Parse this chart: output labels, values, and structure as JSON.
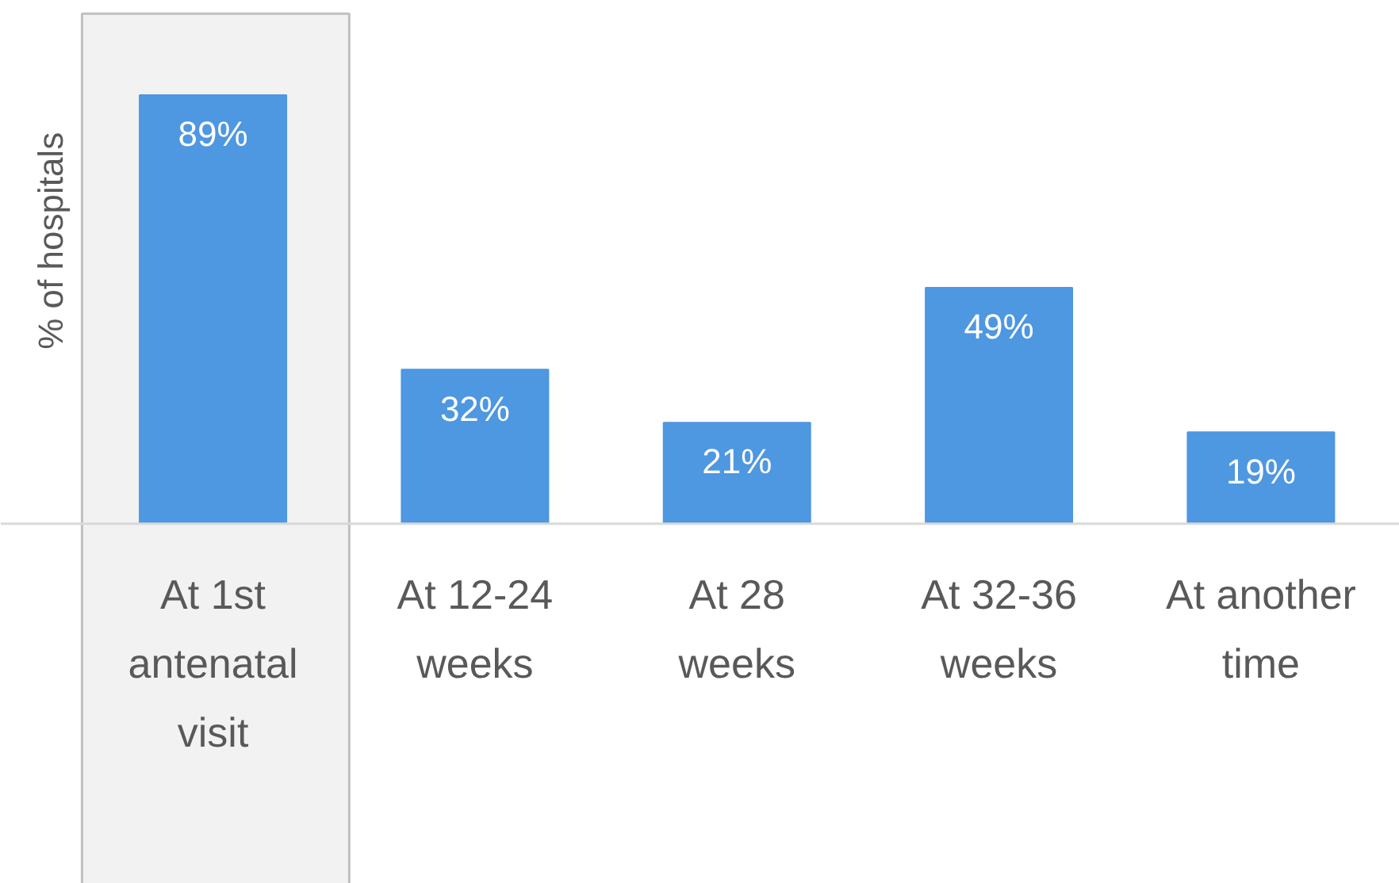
{
  "chart_data": {
    "type": "bar",
    "ylabel": "% of hospitals",
    "categories": [
      "At 1st\nantenatal\nvisit",
      "At 12-24\nweeks",
      "At 28\nweeks",
      "At 32-36\nweeks",
      "At another\ntime"
    ],
    "values": [
      89,
      32,
      21,
      49,
      19
    ],
    "color": "#4e97e1",
    "data_labels": true,
    "value_labels": [
      "89%",
      "32%",
      "21%",
      "49%",
      "19%"
    ],
    "bands": [
      {
        "axis": "x",
        "from": "At 1st\nantenatal\nvisit",
        "to": "At 1st\nantenatal\nvisit",
        "color": "#f2f2f2"
      }
    ],
    "grid": false
  }
}
